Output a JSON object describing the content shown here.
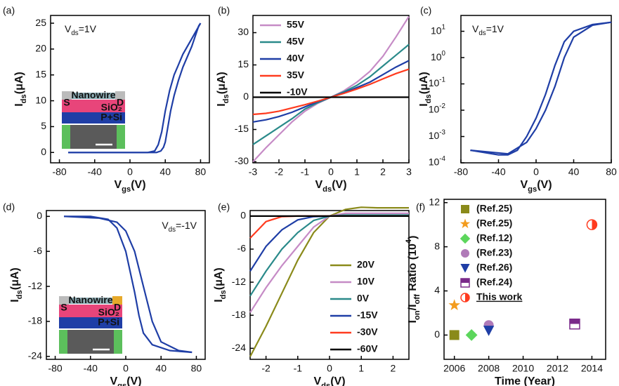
{
  "chart_data": [
    {
      "type": "line",
      "panel": "(a)",
      "xlabel": [
        {
          "text": "V"
        },
        {
          "text": "gs",
          "shift": "sub"
        },
        {
          "text": "(V)"
        }
      ],
      "ylabel": [
        {
          "text": "I"
        },
        {
          "text": "ds",
          "shift": "sub"
        },
        {
          "text": "(μA)"
        }
      ],
      "annotation": [
        {
          "text": "V"
        },
        {
          "text": "ds",
          "shift": "sub"
        },
        {
          "text": "=1V"
        }
      ],
      "xlim": [
        -90,
        90
      ],
      "ylim": [
        -2,
        26.5
      ],
      "xticks": [
        -80,
        -40,
        0,
        40,
        80
      ],
      "yticks": [
        0,
        5,
        10,
        15,
        20,
        25
      ],
      "series": [
        {
          "color": "#1f3ea6",
          "x": [
            -70,
            20,
            28,
            32,
            36,
            40,
            45,
            50,
            55,
            60,
            70,
            80
          ],
          "values": [
            0,
            0,
            0.3,
            1.5,
            4,
            8,
            12,
            15,
            17,
            19,
            22,
            25
          ]
        },
        {
          "color": "#1f3ea6",
          "x": [
            -70,
            30,
            35,
            38,
            40,
            43,
            46,
            50,
            55,
            60,
            70,
            78,
            80
          ],
          "values": [
            0,
            0,
            0.3,
            1,
            2,
            5,
            8,
            11,
            14,
            16.5,
            20.5,
            24.5,
            25
          ]
        }
      ],
      "inset": {
        "source": "S",
        "channel": "Nanowire",
        "drain": "D",
        "oxide": "SiO₂",
        "substrate": "P+Si"
      }
    },
    {
      "type": "line",
      "panel": "(b)",
      "xlabel": [
        {
          "text": "V"
        },
        {
          "text": "ds",
          "shift": "sub"
        },
        {
          "text": "(V)"
        }
      ],
      "ylabel": [
        {
          "text": "I"
        },
        {
          "text": "ds",
          "shift": "sub"
        },
        {
          "text": "(μA)"
        }
      ],
      "xlim": [
        -3,
        3
      ],
      "ylim": [
        -30.5,
        38
      ],
      "xticks": [
        -3,
        -2,
        -1,
        0,
        1,
        2,
        3
      ],
      "yticks": [
        -30,
        -15,
        0,
        15,
        30
      ],
      "legend": "upper left",
      "x": [
        -3,
        -2.5,
        -2,
        -1.5,
        -1,
        -0.5,
        0,
        0.5,
        1,
        1.5,
        2,
        2.5,
        3
      ],
      "series": [
        {
          "name": "55V",
          "color": "#c68bc6",
          "values": [
            -30,
            -23.5,
            -17.5,
            -11.5,
            -6.5,
            -2.8,
            0,
            3,
            7,
            12,
            19,
            28,
            37.5
          ]
        },
        {
          "name": "45V",
          "color": "#2a8a8a",
          "values": [
            -22,
            -18,
            -14,
            -10,
            -5.5,
            -2.5,
            0,
            2.5,
            5.5,
            9.5,
            14.5,
            19.5,
            24.5
          ]
        },
        {
          "name": "40V",
          "color": "#1f3ea6",
          "values": [
            -11.5,
            -10.5,
            -9,
            -7,
            -4.5,
            -2,
            0,
            2,
            4.5,
            7,
            10.5,
            14,
            17
          ]
        },
        {
          "name": "35V",
          "color": "#ff3b1f",
          "values": [
            -8,
            -7.5,
            -6.5,
            -5,
            -3.5,
            -1.8,
            0,
            1.8,
            3.8,
            6,
            8.5,
            11,
            13
          ]
        },
        {
          "name": "-10V",
          "color": "#000000",
          "values": [
            0,
            0,
            0,
            0,
            0,
            0,
            0,
            0,
            0,
            0,
            0,
            0,
            0
          ]
        }
      ]
    },
    {
      "type": "line",
      "panel": "(c)",
      "log": true,
      "xlabel": [
        {
          "text": "V"
        },
        {
          "text": "gs",
          "shift": "sub"
        },
        {
          "text": "(V)"
        }
      ],
      "ylabel": [
        {
          "text": "I"
        },
        {
          "text": "ds",
          "shift": "sub"
        },
        {
          "text": "(μA)"
        }
      ],
      "annotation": [
        {
          "text": "V"
        },
        {
          "text": "ds",
          "shift": "sub"
        },
        {
          "text": "=1V"
        }
      ],
      "xlim": [
        -80,
        80
      ],
      "ylim": [
        0.0001,
        40
      ],
      "xticks": [
        -80,
        -40,
        0,
        40,
        80
      ],
      "yticks": [
        {
          "value": 0.0001,
          "label": "10",
          "exp": "-4"
        },
        {
          "value": 0.001,
          "label": "10",
          "exp": "-3"
        },
        {
          "value": 0.01,
          "label": "10",
          "exp": "-2"
        },
        {
          "value": 0.1,
          "label": "10",
          "exp": "-1"
        },
        {
          "value": 1,
          "label": "10",
          "exp": "0"
        },
        {
          "value": 10,
          "label": "10",
          "exp": "1"
        }
      ],
      "series": [
        {
          "color": "#1f3ea6",
          "x": [
            -70,
            -40,
            -30,
            -20,
            -10,
            0,
            10,
            20,
            30,
            40,
            60,
            80
          ],
          "values": [
            0.0003,
            0.0002,
            0.0002,
            0.0003,
            0.001,
            0.005,
            0.04,
            0.5,
            4,
            10,
            18,
            22
          ]
        },
        {
          "color": "#1f3ea6",
          "x": [
            -70,
            -30,
            -10,
            0,
            10,
            20,
            30,
            40,
            60,
            80
          ],
          "values": [
            0.0003,
            0.00022,
            0.0006,
            0.002,
            0.01,
            0.08,
            1,
            6,
            17,
            22
          ]
        }
      ]
    },
    {
      "type": "line",
      "panel": "(d)",
      "xlabel": [
        {
          "text": "V"
        },
        {
          "text": "gs",
          "shift": "sub"
        },
        {
          "text": "(V)"
        }
      ],
      "ylabel": [
        {
          "text": "I"
        },
        {
          "text": "ds",
          "shift": "sub"
        },
        {
          "text": "(μA)"
        }
      ],
      "annotation": [
        {
          "text": "V"
        },
        {
          "text": "ds",
          "shift": "sub"
        },
        {
          "text": "=-1V"
        }
      ],
      "xlim": [
        -90,
        90
      ],
      "ylim": [
        -24.5,
        1
      ],
      "xticks": [
        -80,
        -40,
        0,
        40,
        80
      ],
      "yticks": [
        0,
        -6,
        -12,
        -18,
        -24
      ],
      "series": [
        {
          "color": "#1f3ea6",
          "x": [
            -70,
            -40,
            -20,
            -10,
            0,
            10,
            15,
            20,
            30,
            50,
            75
          ],
          "values": [
            0,
            0,
            -0.5,
            -2,
            -6,
            -13,
            -17,
            -20,
            -22,
            -23,
            -23.3
          ]
        },
        {
          "color": "#1f3ea6",
          "x": [
            -70,
            -30,
            -10,
            0,
            10,
            20,
            30,
            40,
            60,
            75
          ],
          "values": [
            0,
            -0.3,
            -1,
            -2.5,
            -6,
            -12,
            -18,
            -21.5,
            -23,
            -23.3
          ]
        }
      ],
      "inset": {
        "source": "S",
        "channel": "Nanowire",
        "drain": "D",
        "oxide": "SiO₂",
        "substrate": "P+Si"
      }
    },
    {
      "type": "line",
      "panel": "(e)",
      "xlabel": [
        {
          "text": "V"
        },
        {
          "text": "ds",
          "shift": "sub"
        },
        {
          "text": "(V)"
        }
      ],
      "ylabel": [
        {
          "text": "I"
        },
        {
          "text": "ds",
          "shift": "sub"
        },
        {
          "text": "(μA)"
        }
      ],
      "xlim": [
        -2.5,
        2.5
      ],
      "ylim": [
        -26,
        1
      ],
      "xticks": [
        -2,
        -1,
        0,
        1,
        2
      ],
      "yticks": [
        0,
        -6,
        -12,
        -18,
        -24
      ],
      "legend": "lower right",
      "x": [
        -2.5,
        -2,
        -1.5,
        -1,
        -0.5,
        0,
        0.5,
        1,
        1.5,
        2,
        2.5
      ],
      "series": [
        {
          "name": "20V",
          "color": "#8a8a1a",
          "values": [
            -25.5,
            -20,
            -14,
            -8,
            -3,
            0,
            1.2,
            1.6,
            1.5,
            1.5,
            1.5
          ]
        },
        {
          "name": "10V",
          "color": "#c68bc6",
          "values": [
            -17.5,
            -13,
            -9,
            -5.5,
            -2,
            0,
            0.5,
            0.5,
            0.5,
            0.5,
            0.5
          ]
        },
        {
          "name": "0V",
          "color": "#2a8a8a",
          "values": [
            -14.5,
            -10,
            -6,
            -3,
            -0.8,
            0,
            0.2,
            0.2,
            0.2,
            0.2,
            0.2
          ]
        },
        {
          "name": "-15V",
          "color": "#1f3ea6",
          "values": [
            -10,
            -5.5,
            -2.5,
            -0.7,
            -0.1,
            0,
            0,
            0,
            0,
            0,
            0
          ]
        },
        {
          "name": "-30V",
          "color": "#ff3b1f",
          "values": [
            -4,
            -1,
            -0.1,
            0,
            0,
            0,
            0,
            0,
            0,
            0,
            0
          ]
        },
        {
          "name": "-60V",
          "color": "#000000",
          "values": [
            0,
            0,
            0,
            0,
            0,
            0,
            0,
            0,
            0,
            0,
            0
          ]
        }
      ]
    },
    {
      "type": "scatter",
      "panel": "(f)",
      "xlabel": [
        {
          "text": "Time (Year)"
        }
      ],
      "ylabel": [
        {
          "text": "I"
        },
        {
          "text": "on",
          "shift": "sub"
        },
        {
          "text": "/I"
        },
        {
          "text": "off",
          "shift": "sub"
        },
        {
          "text": " Ratio (10"
        },
        {
          "text": "4",
          "shift": "super"
        },
        {
          "text": ")"
        }
      ],
      "xlim": [
        2005.4,
        2014.8
      ],
      "ylim": [
        -2.2,
        12.3
      ],
      "xticks": [
        2006,
        2008,
        2010,
        2012,
        2014
      ],
      "yticks": [
        0,
        4,
        8,
        12
      ],
      "legend": "upper left",
      "series": [
        {
          "name": "(Ref.25)",
          "color": "#8a8a1a",
          "marker": "square",
          "x": [
            2006
          ],
          "values": [
            0
          ]
        },
        {
          "name": "(Ref.25)",
          "color": "#f39c1e",
          "marker": "star",
          "x": [
            2006
          ],
          "values": [
            2.7
          ]
        },
        {
          "name": "(Ref.12)",
          "color": "#5cd65c",
          "marker": "diamond",
          "x": [
            2007
          ],
          "values": [
            0
          ]
        },
        {
          "name": "(Ref.23)",
          "color": "#b07ab8",
          "marker": "circle",
          "x": [
            2008
          ],
          "values": [
            0.9
          ]
        },
        {
          "name": "(Ref.26)",
          "color": "#1f3ea6",
          "marker": "triangle-down",
          "x": [
            2008
          ],
          "values": [
            0.4
          ]
        },
        {
          "name": "(Ref.24)",
          "color": "#7a2a8a",
          "marker": "half-square",
          "x": [
            2013
          ],
          "values": [
            1
          ]
        },
        {
          "name": "This work",
          "color": "#ff3b1f",
          "marker": "half-circle",
          "x": [
            2014
          ],
          "values": [
            10
          ]
        }
      ]
    }
  ]
}
